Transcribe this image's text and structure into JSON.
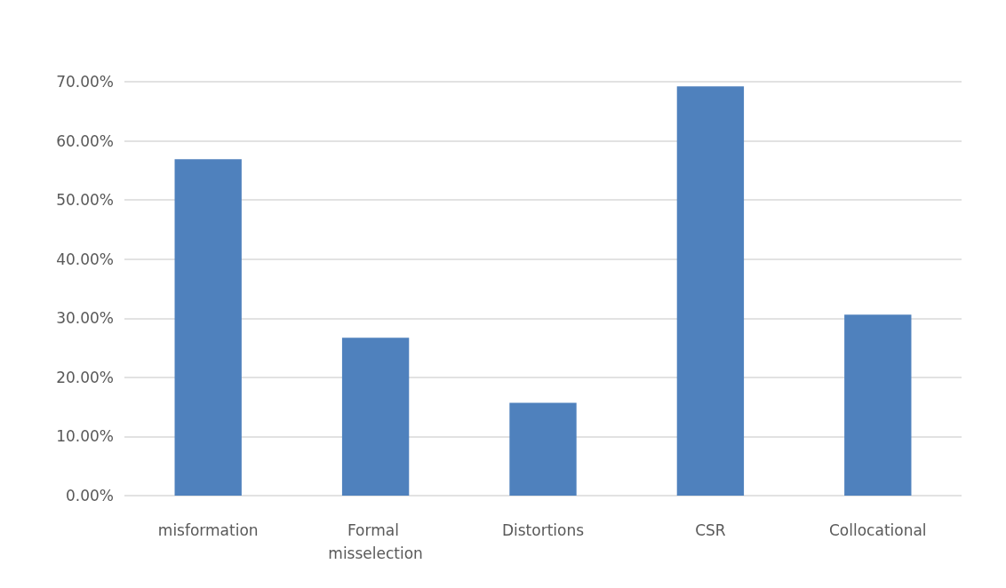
{
  "chart_data": {
    "type": "bar",
    "categories": [
      "misformation",
      "Formal misselection",
      "Distortions",
      "CSR",
      "Collocational"
    ],
    "values": [
      56.9,
      26.7,
      15.7,
      69.2,
      30.6
    ],
    "color": "#4f81bd",
    "ylim": [
      0,
      70
    ],
    "yticks": [
      {
        "value": 0,
        "label": "0.00%"
      },
      {
        "value": 10,
        "label": "10.00%"
      },
      {
        "value": 20,
        "label": "20.00%"
      },
      {
        "value": 30,
        "label": "30.00%"
      },
      {
        "value": 40,
        "label": "40.00%"
      },
      {
        "value": 50,
        "label": "50.00%"
      },
      {
        "value": 60,
        "label": "60.00%"
      },
      {
        "value": 70,
        "label": "70.00%"
      }
    ],
    "grid": "y"
  }
}
